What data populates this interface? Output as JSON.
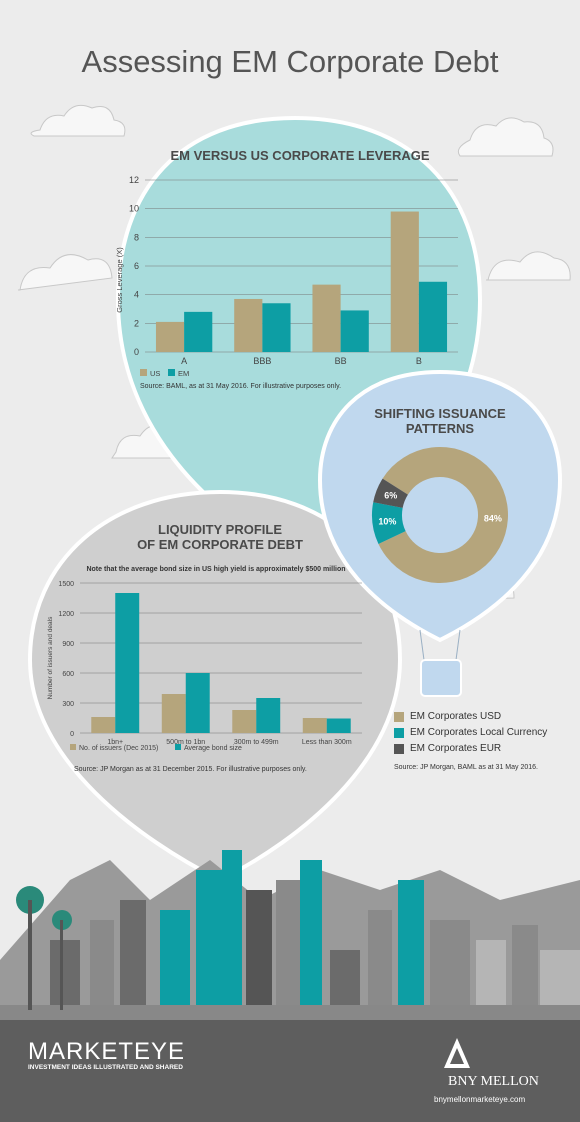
{
  "title": "Assessing EM Corporate Debt",
  "colors": {
    "us": "#b5a57c",
    "em": "#0d9ea4",
    "local": "#0d9ea4",
    "eur": "#555555",
    "balloon1": "#a8dcdc",
    "balloon2": "#c0d8ee",
    "balloon3": "#cfcfcf"
  },
  "chart_data": [
    {
      "type": "bar",
      "title": "EM VERSUS US CORPORATE LEVERAGE",
      "categories": [
        "A",
        "BBB",
        "BB",
        "B"
      ],
      "series": [
        {
          "name": "US",
          "values": [
            2.1,
            3.7,
            4.7,
            9.8
          ]
        },
        {
          "name": "EM",
          "values": [
            2.8,
            3.4,
            2.9,
            4.9
          ]
        }
      ],
      "ylabel": "Gross Leverage (X)",
      "ylim": [
        0,
        12
      ],
      "yticks": [
        "0",
        "2",
        "4",
        "6",
        "8",
        "10",
        "12"
      ],
      "legend": [
        "US",
        "EM"
      ],
      "source": "Source: BAML, as at 31 May 2016. For illustrative purposes only."
    },
    {
      "type": "pie",
      "title": "SHIFTING ISSUANCE PATTERNS",
      "categories": [
        "EM Corporates USD",
        "EM Corporates Local Currency",
        "EM Corporates EUR"
      ],
      "values": [
        84,
        10,
        6
      ],
      "labels": [
        "84%",
        "10%",
        "6%"
      ],
      "source": "Source: JP Morgan, BAML as at 31 May 2016."
    },
    {
      "type": "bar",
      "title": "LIQUIDITY PROFILE OF EM CORPORATE DEBT",
      "title_lines": [
        "LIQUIDITY PROFILE",
        "OF EM CORPORATE DEBT"
      ],
      "note": "Note that the average bond size in US high yield is approximately $500 million",
      "categories": [
        "1bn+",
        "500m to 1bn",
        "300m to 499m",
        "Less than 300m"
      ],
      "series": [
        {
          "name": "No. of issuers (Dec 2015)",
          "values": [
            160,
            390,
            230,
            150
          ]
        },
        {
          "name": "Average bond size",
          "values": [
            1400,
            600,
            350,
            145
          ]
        }
      ],
      "ylabel": "Number of issuers and deals",
      "ylim": [
        0,
        1500
      ],
      "yticks": [
        "0",
        "300",
        "600",
        "900",
        "1200",
        "1500"
      ],
      "legend": [
        "No. of issuers (Dec 2015)",
        "Average bond size"
      ],
      "source": "Source: JP Morgan as at 31 December 2015. For illustrative purposes only."
    }
  ],
  "footer": {
    "brand": "MARKETEYE",
    "tagline": "INVESTMENT IDEAS ILLUSTRATED AND SHARED",
    "company": "BNY MELLON",
    "url": "bnymellonmarketeye.com"
  }
}
